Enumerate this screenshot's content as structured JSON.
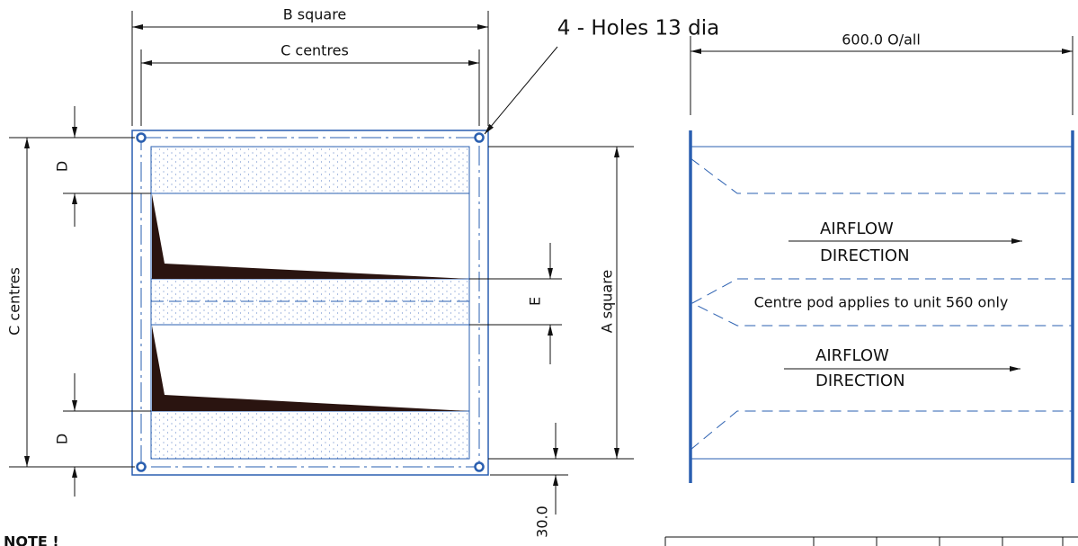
{
  "left_view": {
    "b_dim": "B  square",
    "c_dim_top": "C  centres",
    "c_dim_side": "C  centres",
    "d_top": "D",
    "d_bottom": "D",
    "e_dim": "E",
    "a_dim": "A  square",
    "offset_dim": "30.0",
    "holes_note": "4 - Holes 13 dia"
  },
  "right_view": {
    "overall_dim": "600.0  O/all",
    "airflow_upper": [
      "AIRFLOW",
      "DIRECTION"
    ],
    "airflow_lower": [
      "AIRFLOW",
      "DIRECTION"
    ],
    "pod_note": "Centre pod applies to unit 560 only"
  },
  "note": "NOTE !"
}
